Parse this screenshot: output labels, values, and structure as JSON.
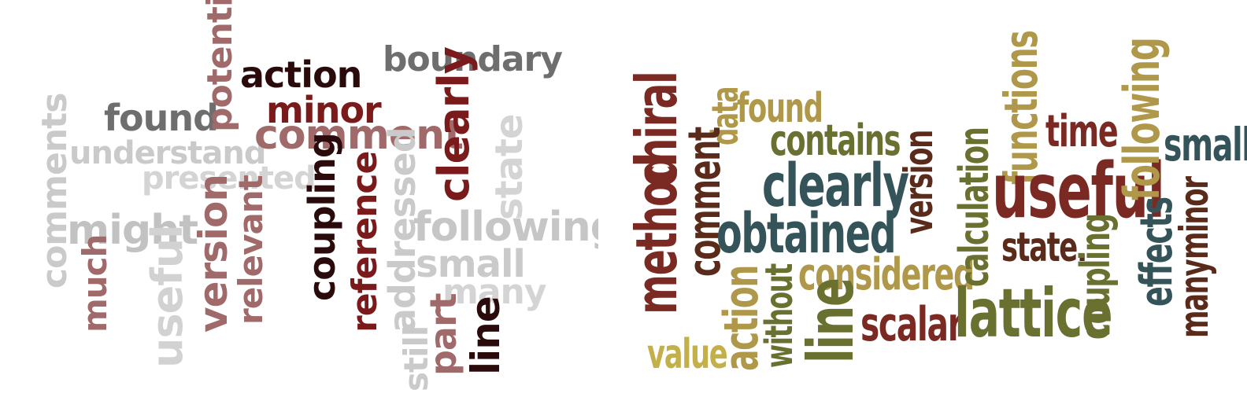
{
  "colors": {
    "background": "#ffffff",
    "left_palette": [
      "#c8c8c8",
      "#6e6e6e",
      "#a06a6a",
      "#7a1a1a",
      "#2a0a0a"
    ],
    "right_palette": [
      "#7a2a22",
      "#34545a",
      "#6a7030",
      "#b0984a",
      "#5a2a1a"
    ]
  },
  "left_cloud": {
    "words": [
      "comments",
      "understand",
      "presented",
      "might",
      "much",
      "useful",
      "found",
      "potential",
      "action",
      "minor",
      "comment",
      "boundary",
      "clearly",
      "version",
      "relevant",
      "coupling",
      "reference",
      "addressed",
      "still",
      "state",
      "following",
      "small",
      "many",
      "part",
      "line"
    ]
  },
  "right_cloud": {
    "words": [
      "method",
      "chiral",
      "data",
      "comment",
      "found",
      "contains",
      "clearly",
      "obtained",
      "version",
      "considered",
      "without",
      "action",
      "value",
      "line",
      "scalar",
      "calculation",
      "functions",
      "useful",
      "time",
      "following",
      "state.",
      "coupling",
      "lattice",
      "small",
      "effects",
      "many",
      "minor"
    ]
  }
}
